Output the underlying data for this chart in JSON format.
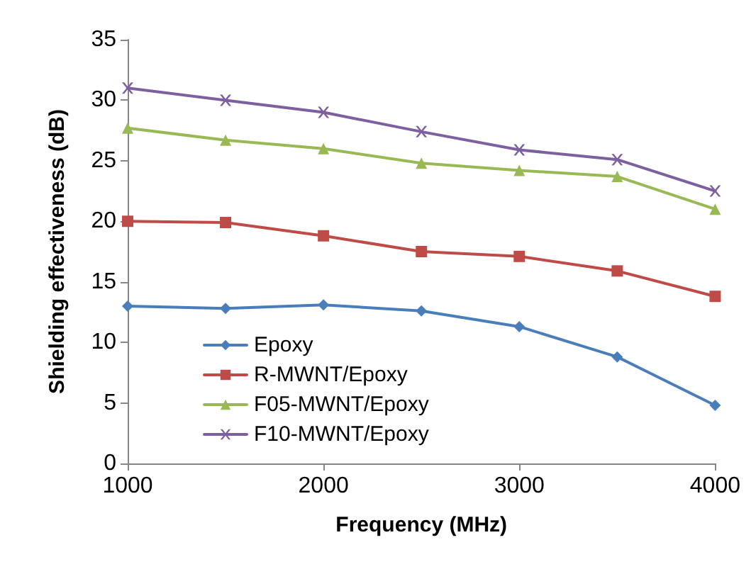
{
  "chart_data": {
    "type": "line",
    "xlabel": "Frequency (MHz)",
    "ylabel": "Shielding effectiveness (dB)",
    "x": [
      1000,
      1500,
      2000,
      2500,
      3000,
      3500,
      4000
    ],
    "series": [
      {
        "name": "Epoxy",
        "color": "#4a7ebb",
        "marker": "diamond",
        "values": [
          13,
          12.8,
          13.1,
          12.6,
          11.3,
          8.8,
          4.8
        ]
      },
      {
        "name": "R-MWNT/Epoxy",
        "color": "#be4b48",
        "marker": "square",
        "values": [
          20,
          19.9,
          18.8,
          17.5,
          17.1,
          15.9,
          13.8
        ]
      },
      {
        "name": "F05-MWNT/Epoxy",
        "color": "#98b954",
        "marker": "triangle",
        "values": [
          27.7,
          26.7,
          26,
          24.8,
          24.2,
          23.7,
          21
        ]
      },
      {
        "name": "F10-MWNT/Epoxy",
        "color": "#7d60a0",
        "marker": "cross",
        "values": [
          31,
          30,
          29,
          27.4,
          25.9,
          25.1,
          22.5
        ]
      }
    ],
    "xlim": [
      1000,
      4000
    ],
    "xticks": [
      1000,
      2000,
      3000,
      4000
    ],
    "ylim": [
      0,
      35
    ],
    "yticks": [
      0,
      5,
      10,
      15,
      20,
      25,
      30,
      35
    ],
    "grid": false,
    "legend": "bottom left"
  }
}
